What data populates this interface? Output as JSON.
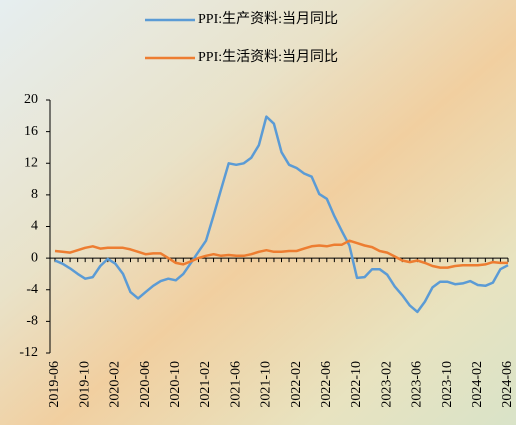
{
  "chart_data": {
    "type": "line",
    "categories": [
      "2019-06",
      null,
      null,
      null,
      "2019-10",
      null,
      null,
      null,
      "2020-02",
      null,
      null,
      null,
      "2020-06",
      null,
      null,
      null,
      "2020-10",
      null,
      null,
      null,
      "2021-02",
      null,
      null,
      null,
      "2021-06",
      null,
      null,
      null,
      "2021-10",
      null,
      null,
      null,
      "2022-02",
      null,
      null,
      null,
      "2022-06",
      null,
      null,
      null,
      "2022-10",
      null,
      null,
      null,
      "2023-02",
      null,
      null,
      null,
      "2023-06",
      null,
      null,
      null,
      "2023-10",
      null,
      null,
      null,
      "2024-02",
      null,
      null,
      null,
      "2024-06"
    ],
    "series": [
      {
        "name": "PPI:生产资料:当月同比",
        "color": "#5b9bd5",
        "values": [
          -0.3,
          -0.7,
          -1.3,
          -2.0,
          -2.6,
          -2.4,
          -1.0,
          -0.1,
          -0.7,
          -2.0,
          -4.3,
          -5.1,
          -4.3,
          -3.5,
          -2.9,
          -2.6,
          -2.8,
          -2.0,
          -0.6,
          0.8,
          2.2,
          5.4,
          8.7,
          12.0,
          11.8,
          12.0,
          12.7,
          14.3,
          17.9,
          17.0,
          13.4,
          11.8,
          11.4,
          10.7,
          10.3,
          8.1,
          7.5,
          5.3,
          3.4,
          1.6,
          -2.5,
          -2.4,
          -1.4,
          -1.4,
          -2.1,
          -3.6,
          -4.7,
          -6.0,
          -6.8,
          -5.5,
          -3.7,
          -3.0,
          -3.0,
          -3.3,
          -3.2,
          -2.9,
          -3.4,
          -3.5,
          -3.1,
          -1.4,
          -0.9
        ]
      },
      {
        "name": "PPI:生活资料:当月同比",
        "color": "#ed7d31",
        "values": [
          0.9,
          0.8,
          0.7,
          1.0,
          1.3,
          1.5,
          1.2,
          1.3,
          1.3,
          1.3,
          1.1,
          0.8,
          0.5,
          0.6,
          0.6,
          0.0,
          -0.6,
          -0.8,
          -0.4,
          0.0,
          0.3,
          0.5,
          0.3,
          0.4,
          0.3,
          0.3,
          0.5,
          0.8,
          1.0,
          0.8,
          0.8,
          0.9,
          0.9,
          1.2,
          1.5,
          1.6,
          1.5,
          1.7,
          1.7,
          2.2,
          1.9,
          1.6,
          1.4,
          0.9,
          0.7,
          0.2,
          -0.3,
          -0.5,
          -0.3,
          -0.6,
          -1.0,
          -1.2,
          -1.2,
          -1.0,
          -0.9,
          -0.9,
          -0.9,
          -0.8,
          -0.5,
          -0.6,
          -0.6
        ]
      }
    ],
    "ylim": [
      -12,
      20
    ],
    "yticks": [
      -12,
      -8,
      -4,
      0,
      4,
      8,
      12,
      16,
      20
    ],
    "grid": false,
    "legend": "top"
  }
}
